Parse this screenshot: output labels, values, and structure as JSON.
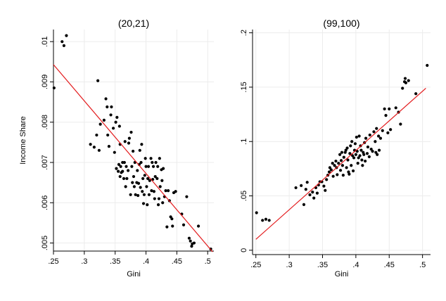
{
  "chart_data": [
    {
      "type": "scatter",
      "title": "(20,21)",
      "xlabel": "Gini",
      "ylabel": "Income Share",
      "xlim": [
        0.25,
        0.51
      ],
      "ylim": [
        0.0048,
        0.0103
      ],
      "xticks": [
        0.25,
        0.3,
        0.35,
        0.4,
        0.45,
        0.5
      ],
      "xtick_labels": [
        ".25",
        ".3",
        ".35",
        ".4",
        ".45",
        ".5"
      ],
      "yticks": [
        0.005,
        0.006,
        0.007,
        0.008,
        0.009,
        0.01
      ],
      "ytick_labels": [
        ".005",
        ".006",
        ".007",
        ".008",
        ".009",
        ".01"
      ],
      "grid": true,
      "point_color": "#000000",
      "fit_line": {
        "x": [
          0.25,
          0.508
        ],
        "y": [
          0.00943,
          0.00478
        ],
        "color": "#e31a1c"
      },
      "points": [
        [
          0.251,
          0.00885
        ],
        [
          0.264,
          0.01
        ],
        [
          0.267,
          0.0099
        ],
        [
          0.271,
          0.01015
        ],
        [
          0.31,
          0.00745
        ],
        [
          0.316,
          0.00738
        ],
        [
          0.32,
          0.00768
        ],
        [
          0.322,
          0.00903
        ],
        [
          0.324,
          0.0073
        ],
        [
          0.326,
          0.00795
        ],
        [
          0.332,
          0.00805
        ],
        [
          0.335,
          0.00858
        ],
        [
          0.337,
          0.00838
        ],
        [
          0.338,
          0.00768
        ],
        [
          0.34,
          0.0074
        ],
        [
          0.343,
          0.00818
        ],
        [
          0.344,
          0.00838
        ],
        [
          0.347,
          0.00785
        ],
        [
          0.349,
          0.00725
        ],
        [
          0.351,
          0.008
        ],
        [
          0.352,
          0.00685
        ],
        [
          0.353,
          0.00812
        ],
        [
          0.355,
          0.00678
        ],
        [
          0.356,
          0.00695
        ],
        [
          0.357,
          0.0079
        ],
        [
          0.358,
          0.00745
        ],
        [
          0.358,
          0.00665
        ],
        [
          0.359,
          0.0069
        ],
        [
          0.36,
          0.00675
        ],
        [
          0.362,
          0.007
        ],
        [
          0.362,
          0.00678
        ],
        [
          0.364,
          0.0066
        ],
        [
          0.365,
          0.007
        ],
        [
          0.366,
          0.00752
        ],
        [
          0.367,
          0.0064
        ],
        [
          0.368,
          0.0069
        ],
        [
          0.369,
          0.0066
        ],
        [
          0.371,
          0.0068
        ],
        [
          0.372,
          0.00748
        ],
        [
          0.373,
          0.0076
        ],
        [
          0.375,
          0.0062
        ],
        [
          0.376,
          0.00775
        ],
        [
          0.377,
          0.0069
        ],
        [
          0.378,
          0.0065
        ],
        [
          0.379,
          0.00728
        ],
        [
          0.38,
          0.00665
        ],
        [
          0.381,
          0.0064
        ],
        [
          0.382,
          0.007
        ],
        [
          0.383,
          0.0062
        ],
        [
          0.385,
          0.0065
        ],
        [
          0.386,
          0.0068
        ],
        [
          0.387,
          0.00618
        ],
        [
          0.388,
          0.00648
        ],
        [
          0.389,
          0.00695
        ],
        [
          0.39,
          0.0073
        ],
        [
          0.391,
          0.00638
        ],
        [
          0.392,
          0.007
        ],
        [
          0.393,
          0.00745
        ],
        [
          0.394,
          0.00628
        ],
        [
          0.395,
          0.0066
        ],
        [
          0.396,
          0.00598
        ],
        [
          0.397,
          0.0062
        ],
        [
          0.398,
          0.00668
        ],
        [
          0.399,
          0.0071
        ],
        [
          0.4,
          0.0069
        ],
        [
          0.401,
          0.0064
        ],
        [
          0.402,
          0.00595
        ],
        [
          0.403,
          0.0066
        ],
        [
          0.404,
          0.0069
        ],
        [
          0.405,
          0.0062
        ],
        [
          0.406,
          0.00655
        ],
        [
          0.408,
          0.0071
        ],
        [
          0.409,
          0.0063
        ],
        [
          0.41,
          0.007
        ],
        [
          0.411,
          0.00658
        ],
        [
          0.412,
          0.0069
        ],
        [
          0.413,
          0.00628
        ],
        [
          0.414,
          0.0061
        ],
        [
          0.415,
          0.00665
        ],
        [
          0.416,
          0.007
        ],
        [
          0.418,
          0.0066
        ],
        [
          0.419,
          0.0069
        ],
        [
          0.42,
          0.00595
        ],
        [
          0.421,
          0.0061
        ],
        [
          0.422,
          0.0071
        ],
        [
          0.423,
          0.0064
        ],
        [
          0.425,
          0.00682
        ],
        [
          0.426,
          0.00655
        ],
        [
          0.427,
          0.006
        ],
        [
          0.428,
          0.00685
        ],
        [
          0.43,
          0.00615
        ],
        [
          0.432,
          0.0063
        ],
        [
          0.434,
          0.0054
        ],
        [
          0.436,
          0.0063
        ],
        [
          0.438,
          0.00605
        ],
        [
          0.44,
          0.00565
        ],
        [
          0.442,
          0.0056
        ],
        [
          0.443,
          0.00542
        ],
        [
          0.445,
          0.00625
        ],
        [
          0.448,
          0.00628
        ],
        [
          0.458,
          0.00572
        ],
        [
          0.461,
          0.00545
        ],
        [
          0.466,
          0.00615
        ],
        [
          0.47,
          0.00512
        ],
        [
          0.472,
          0.00505
        ],
        [
          0.474,
          0.00492
        ],
        [
          0.475,
          0.00498
        ],
        [
          0.478,
          0.005
        ],
        [
          0.485,
          0.00542
        ],
        [
          0.505,
          0.00485
        ]
      ]
    },
    {
      "type": "scatter",
      "title": "(99,100)",
      "xlabel": "Gini",
      "ylabel": "",
      "xlim": [
        0.245,
        0.512
      ],
      "ylim": [
        -0.004,
        0.203
      ],
      "xticks": [
        0.25,
        0.3,
        0.35,
        0.4,
        0.45,
        0.5
      ],
      "xtick_labels": [
        ".25",
        ".3",
        ".35",
        ".4",
        ".45",
        ".5"
      ],
      "yticks": [
        0,
        0.05,
        0.1,
        0.15,
        0.2
      ],
      "ytick_labels": [
        "0",
        ".05",
        ".1",
        ".15",
        ".2"
      ],
      "grid": true,
      "point_color": "#000000",
      "fit_line": {
        "x": [
          0.25,
          0.505
        ],
        "y": [
          0.01,
          0.149
        ],
        "color": "#e31a1c"
      },
      "points": [
        [
          0.251,
          0.0345
        ],
        [
          0.26,
          0.0275
        ],
        [
          0.265,
          0.0285
        ],
        [
          0.27,
          0.0275
        ],
        [
          0.31,
          0.0575
        ],
        [
          0.318,
          0.0595
        ],
        [
          0.322,
          0.042
        ],
        [
          0.325,
          0.056
        ],
        [
          0.327,
          0.0625
        ],
        [
          0.331,
          0.051
        ],
        [
          0.335,
          0.0535
        ],
        [
          0.337,
          0.048
        ],
        [
          0.34,
          0.0575
        ],
        [
          0.342,
          0.0525
        ],
        [
          0.344,
          0.06
        ],
        [
          0.346,
          0.063
        ],
        [
          0.349,
          0.063
        ],
        [
          0.352,
          0.059
        ],
        [
          0.354,
          0.055
        ],
        [
          0.356,
          0.065
        ],
        [
          0.358,
          0.069
        ],
        [
          0.36,
          0.072
        ],
        [
          0.361,
          0.076
        ],
        [
          0.363,
          0.074
        ],
        [
          0.365,
          0.08
        ],
        [
          0.366,
          0.068
        ],
        [
          0.368,
          0.078
        ],
        [
          0.37,
          0.082
        ],
        [
          0.371,
          0.076
        ],
        [
          0.372,
          0.0695
        ],
        [
          0.374,
          0.08
        ],
        [
          0.376,
          0.088
        ],
        [
          0.377,
          0.0735
        ],
        [
          0.378,
          0.0825
        ],
        [
          0.379,
          0.09
        ],
        [
          0.38,
          0.078
        ],
        [
          0.381,
          0.069
        ],
        [
          0.382,
          0.0855
        ],
        [
          0.384,
          0.09
        ],
        [
          0.385,
          0.092
        ],
        [
          0.386,
          0.076
        ],
        [
          0.387,
          0.094
        ],
        [
          0.388,
          0.083
        ],
        [
          0.389,
          0.072
        ],
        [
          0.39,
          0.07
        ],
        [
          0.391,
          0.089
        ],
        [
          0.392,
          0.096
        ],
        [
          0.393,
          0.078
        ],
        [
          0.394,
          0.1
        ],
        [
          0.395,
          0.087
        ],
        [
          0.396,
          0.073
        ],
        [
          0.397,
          0.085
        ],
        [
          0.398,
          0.092
        ],
        [
          0.399,
          0.098
        ],
        [
          0.4,
          0.088
        ],
        [
          0.401,
          0.104
        ],
        [
          0.402,
          0.091
        ],
        [
          0.403,
          0.08
        ],
        [
          0.404,
          0.085
        ],
        [
          0.405,
          0.105
        ],
        [
          0.406,
          0.087
        ],
        [
          0.407,
          0.096
        ],
        [
          0.408,
          0.092
        ],
        [
          0.409,
          0.083
        ],
        [
          0.41,
          0.078
        ],
        [
          0.411,
          0.09
        ],
        [
          0.412,
          0.088
        ],
        [
          0.413,
          0.099
        ],
        [
          0.414,
          0.082
        ],
        [
          0.415,
          0.103
        ],
        [
          0.417,
          0.089
        ],
        [
          0.418,
          0.095
        ],
        [
          0.42,
          0.086
        ],
        [
          0.421,
          0.106
        ],
        [
          0.423,
          0.093
        ],
        [
          0.425,
          0.091
        ],
        [
          0.427,
          0.109
        ],
        [
          0.429,
          0.1
        ],
        [
          0.43,
          0.09
        ],
        [
          0.431,
          0.112
        ],
        [
          0.432,
          0.088
        ],
        [
          0.434,
          0.105
        ],
        [
          0.435,
          0.092
        ],
        [
          0.437,
          0.103
        ],
        [
          0.44,
          0.11
        ],
        [
          0.443,
          0.13
        ],
        [
          0.445,
          0.124
        ],
        [
          0.448,
          0.108
        ],
        [
          0.45,
          0.13
        ],
        [
          0.452,
          0.111
        ],
        [
          0.46,
          0.131
        ],
        [
          0.464,
          0.127
        ],
        [
          0.467,
          0.116
        ],
        [
          0.47,
          0.149
        ],
        [
          0.473,
          0.155
        ],
        [
          0.474,
          0.158
        ],
        [
          0.475,
          0.154
        ],
        [
          0.479,
          0.156
        ],
        [
          0.49,
          0.144
        ],
        [
          0.507,
          0.17
        ]
      ]
    }
  ]
}
